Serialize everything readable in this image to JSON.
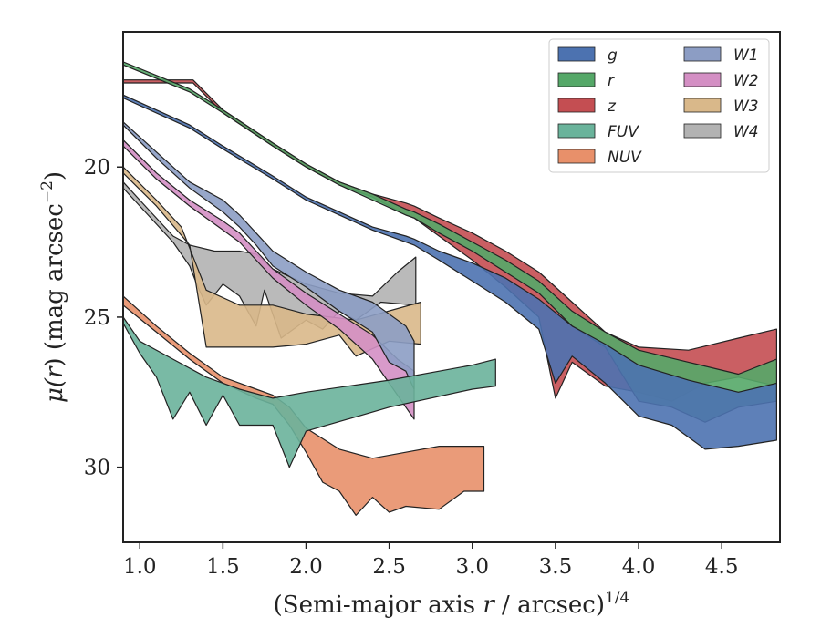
{
  "chart_data": {
    "type": "area",
    "xlabel": "(Semi-major axis r / arcsec)1/4",
    "xlabel_parts": {
      "pre": "(Semi-major axis ",
      "var": "r",
      "post": " / arcsec)",
      "sup": "1/4"
    },
    "ylabel": "μ(r) (mag arcsec−2)",
    "ylabel_parts": {
      "pre": "μ(",
      "var": "r",
      "mid": ") (mag arcsec",
      "sup": "−2",
      "post": ")"
    },
    "xlim": [
      0.9,
      4.85
    ],
    "ylim": [
      32.5,
      15.5
    ],
    "y_inverted": true,
    "x_ticks": [
      1.0,
      1.5,
      2.0,
      2.5,
      3.0,
      3.5,
      4.0,
      4.5
    ],
    "x_tick_labels": [
      "1.0",
      "1.5",
      "2.0",
      "2.5",
      "3.0",
      "3.5",
      "4.0",
      "4.5"
    ],
    "y_ticks": [
      20,
      25,
      30
    ],
    "y_tick_labels": [
      "20",
      "25",
      "30"
    ],
    "grid": false,
    "legend": {
      "placement": "top-right",
      "columns": 2
    },
    "series": [
      {
        "name": "g",
        "color": "#4c72b0",
        "flat_to": null,
        "upper": [
          [
            0.9,
            17.6
          ],
          [
            1.3,
            18.6
          ],
          [
            1.5,
            19.3
          ],
          [
            1.8,
            20.3
          ],
          [
            2.0,
            21.0
          ],
          [
            2.2,
            21.5
          ],
          [
            2.4,
            22.0
          ],
          [
            2.6,
            22.3
          ],
          [
            2.65,
            22.4
          ],
          [
            2.8,
            22.8
          ],
          [
            3.0,
            23.2
          ],
          [
            3.2,
            23.7
          ],
          [
            3.4,
            24.4
          ],
          [
            3.6,
            25.3
          ],
          [
            3.8,
            25.9
          ],
          [
            4.0,
            26.6
          ],
          [
            4.3,
            27.1
          ],
          [
            4.6,
            27.5
          ],
          [
            4.83,
            27.2
          ]
        ],
        "lower": [
          [
            0.9,
            17.7
          ],
          [
            1.3,
            18.7
          ],
          [
            1.5,
            19.4
          ],
          [
            1.8,
            20.4
          ],
          [
            2.0,
            21.1
          ],
          [
            2.2,
            21.6
          ],
          [
            2.4,
            22.1
          ],
          [
            2.6,
            22.5
          ],
          [
            2.65,
            22.6
          ],
          [
            2.8,
            23.1
          ],
          [
            3.0,
            23.8
          ],
          [
            3.2,
            24.5
          ],
          [
            3.4,
            25.4
          ],
          [
            3.5,
            27.2
          ],
          [
            3.6,
            26.3
          ],
          [
            3.8,
            27.2
          ],
          [
            4.0,
            28.3
          ],
          [
            4.2,
            28.6
          ],
          [
            4.4,
            29.4
          ],
          [
            4.6,
            29.3
          ],
          [
            4.83,
            29.1
          ]
        ]
      },
      {
        "name": "r",
        "color": "#55a868",
        "flat_to": null,
        "upper": [
          [
            0.9,
            16.5
          ],
          [
            1.3,
            17.4
          ],
          [
            1.5,
            18.1
          ],
          [
            1.8,
            19.2
          ],
          [
            2.0,
            19.9
          ],
          [
            2.2,
            20.5
          ],
          [
            2.4,
            20.9
          ],
          [
            2.6,
            21.4
          ],
          [
            2.65,
            21.5
          ],
          [
            2.8,
            21.9
          ],
          [
            3.0,
            22.5
          ],
          [
            3.2,
            23.1
          ],
          [
            3.4,
            23.8
          ],
          [
            3.6,
            24.8
          ],
          [
            3.8,
            25.5
          ],
          [
            4.0,
            26.1
          ],
          [
            4.3,
            26.5
          ],
          [
            4.6,
            26.9
          ],
          [
            4.83,
            26.4
          ]
        ],
        "lower": [
          [
            0.9,
            16.6
          ],
          [
            1.3,
            17.5
          ],
          [
            1.5,
            18.2
          ],
          [
            1.8,
            19.3
          ],
          [
            2.0,
            20.0
          ],
          [
            2.2,
            20.6
          ],
          [
            2.4,
            21.1
          ],
          [
            2.6,
            21.6
          ],
          [
            2.65,
            21.7
          ],
          [
            2.8,
            22.2
          ],
          [
            3.0,
            22.8
          ],
          [
            3.2,
            23.5
          ],
          [
            3.4,
            24.2
          ],
          [
            3.6,
            25.3
          ],
          [
            3.8,
            26.0
          ],
          [
            4.0,
            27.8
          ],
          [
            4.2,
            28.0
          ],
          [
            4.4,
            28.5
          ],
          [
            4.6,
            28.0
          ],
          [
            4.83,
            27.8
          ]
        ]
      },
      {
        "name": "z",
        "color": "#c44e52",
        "flat_to": [
          1.32,
          17.1
        ],
        "upper": [
          [
            0.9,
            17.1
          ],
          [
            1.32,
            17.1
          ],
          [
            1.5,
            18.1
          ],
          [
            1.8,
            19.2
          ],
          [
            2.0,
            19.9
          ],
          [
            2.2,
            20.5
          ],
          [
            2.4,
            20.9
          ],
          [
            2.6,
            21.2
          ],
          [
            2.65,
            21.3
          ],
          [
            2.8,
            21.7
          ],
          [
            3.0,
            22.2
          ],
          [
            3.2,
            22.8
          ],
          [
            3.4,
            23.5
          ],
          [
            3.6,
            24.5
          ],
          [
            3.8,
            25.5
          ],
          [
            4.0,
            26.0
          ],
          [
            4.3,
            26.1
          ],
          [
            4.6,
            25.7
          ],
          [
            4.83,
            25.4
          ]
        ],
        "lower": [
          [
            0.9,
            17.2
          ],
          [
            1.32,
            17.2
          ],
          [
            1.5,
            18.2
          ],
          [
            1.8,
            19.3
          ],
          [
            2.0,
            20.0
          ],
          [
            2.2,
            20.6
          ],
          [
            2.4,
            21.0
          ],
          [
            2.6,
            21.6
          ],
          [
            2.65,
            21.7
          ],
          [
            2.8,
            22.3
          ],
          [
            3.0,
            23.1
          ],
          [
            3.2,
            24.0
          ],
          [
            3.4,
            25.0
          ],
          [
            3.5,
            27.7
          ],
          [
            3.6,
            26.5
          ],
          [
            3.8,
            27.3
          ],
          [
            4.0,
            27.5
          ],
          [
            4.2,
            27.8
          ],
          [
            4.4,
            27.2
          ],
          [
            4.6,
            27.0
          ],
          [
            4.83,
            27.3
          ]
        ]
      },
      {
        "name": "FUV",
        "color": "#6ab39b",
        "flat_to": null,
        "upper": [
          [
            0.9,
            25.0
          ],
          [
            1.0,
            25.8
          ],
          [
            1.2,
            26.4
          ],
          [
            1.4,
            27.0
          ],
          [
            1.6,
            27.4
          ],
          [
            1.8,
            27.7
          ],
          [
            2.0,
            27.5
          ],
          [
            2.5,
            27.1
          ],
          [
            3.0,
            26.6
          ],
          [
            3.14,
            26.4
          ]
        ],
        "lower": [
          [
            0.9,
            25.2
          ],
          [
            1.0,
            26.2
          ],
          [
            1.1,
            27.0
          ],
          [
            1.2,
            28.4
          ],
          [
            1.3,
            27.5
          ],
          [
            1.4,
            28.6
          ],
          [
            1.5,
            27.6
          ],
          [
            1.6,
            28.6
          ],
          [
            1.7,
            28.6
          ],
          [
            1.8,
            28.6
          ],
          [
            1.9,
            30.0
          ],
          [
            2.0,
            28.8
          ],
          [
            2.5,
            28.0
          ],
          [
            3.0,
            27.4
          ],
          [
            3.14,
            27.3
          ]
        ]
      },
      {
        "name": "NUV",
        "color": "#e8906a",
        "flat_to": null,
        "upper": [
          [
            0.9,
            24.3
          ],
          [
            1.1,
            25.3
          ],
          [
            1.3,
            26.2
          ],
          [
            1.5,
            27.0
          ],
          [
            1.7,
            27.4
          ],
          [
            1.8,
            27.6
          ],
          [
            1.9,
            28.0
          ],
          [
            2.0,
            28.7
          ],
          [
            2.2,
            29.4
          ],
          [
            2.4,
            29.7
          ],
          [
            2.6,
            29.5
          ],
          [
            2.8,
            29.3
          ],
          [
            3.07,
            29.3
          ]
        ],
        "lower": [
          [
            0.9,
            24.6
          ],
          [
            1.1,
            25.5
          ],
          [
            1.3,
            26.4
          ],
          [
            1.5,
            27.2
          ],
          [
            1.7,
            27.7
          ],
          [
            1.8,
            27.9
          ],
          [
            1.9,
            28.6
          ],
          [
            2.0,
            29.5
          ],
          [
            2.1,
            30.5
          ],
          [
            2.2,
            30.8
          ],
          [
            2.3,
            31.6
          ],
          [
            2.4,
            31.0
          ],
          [
            2.5,
            31.5
          ],
          [
            2.6,
            31.3
          ],
          [
            2.8,
            31.4
          ],
          [
            2.95,
            30.8
          ],
          [
            3.07,
            30.8
          ]
        ]
      },
      {
        "name": "W1",
        "color": "#8c9dc4",
        "flat_to": null,
        "upper": [
          [
            0.9,
            18.5
          ],
          [
            1.1,
            19.5
          ],
          [
            1.3,
            20.5
          ],
          [
            1.5,
            21.1
          ],
          [
            1.6,
            21.6
          ],
          [
            1.7,
            22.2
          ],
          [
            1.8,
            22.8
          ],
          [
            2.0,
            23.5
          ],
          [
            2.2,
            24.1
          ],
          [
            2.4,
            24.5
          ],
          [
            2.6,
            25.3
          ],
          [
            2.65,
            25.8
          ]
        ],
        "lower": [
          [
            0.9,
            18.6
          ],
          [
            1.1,
            19.7
          ],
          [
            1.3,
            20.7
          ],
          [
            1.5,
            21.5
          ],
          [
            1.6,
            22.0
          ],
          [
            1.7,
            22.6
          ],
          [
            1.8,
            23.3
          ],
          [
            2.0,
            24.0
          ],
          [
            2.2,
            24.8
          ],
          [
            2.4,
            25.5
          ],
          [
            2.5,
            26.5
          ],
          [
            2.6,
            26.8
          ],
          [
            2.65,
            27.4
          ]
        ]
      },
      {
        "name": "W2",
        "color": "#d48fc4",
        "flat_to": null,
        "upper": [
          [
            0.9,
            19.1
          ],
          [
            1.1,
            20.2
          ],
          [
            1.3,
            21.1
          ],
          [
            1.5,
            21.8
          ],
          [
            1.6,
            22.2
          ],
          [
            1.7,
            22.8
          ],
          [
            1.8,
            23.4
          ],
          [
            2.0,
            24.2
          ],
          [
            2.2,
            24.9
          ],
          [
            2.4,
            25.6
          ],
          [
            2.55,
            26.4
          ],
          [
            2.65,
            26.8
          ]
        ],
        "lower": [
          [
            0.9,
            19.3
          ],
          [
            1.1,
            20.4
          ],
          [
            1.3,
            21.3
          ],
          [
            1.5,
            22.1
          ],
          [
            1.6,
            22.5
          ],
          [
            1.7,
            23.1
          ],
          [
            1.8,
            23.7
          ],
          [
            2.0,
            24.6
          ],
          [
            2.2,
            25.4
          ],
          [
            2.4,
            26.4
          ],
          [
            2.5,
            27.2
          ],
          [
            2.6,
            28.0
          ],
          [
            2.65,
            28.4
          ]
        ]
      },
      {
        "name": "W3",
        "color": "#d9b88a",
        "flat_to": null,
        "upper": [
          [
            0.9,
            20.0
          ],
          [
            1.1,
            21.1
          ],
          [
            1.25,
            22.0
          ],
          [
            1.4,
            24.1
          ],
          [
            1.6,
            24.6
          ],
          [
            1.8,
            24.6
          ],
          [
            2.0,
            24.9
          ],
          [
            2.3,
            25.1
          ],
          [
            2.69,
            24.5
          ]
        ],
        "lower": [
          [
            0.9,
            20.2
          ],
          [
            1.1,
            21.3
          ],
          [
            1.3,
            22.6
          ],
          [
            1.4,
            26.0
          ],
          [
            1.6,
            26.0
          ],
          [
            1.8,
            26.0
          ],
          [
            2.0,
            25.9
          ],
          [
            2.2,
            25.6
          ],
          [
            2.3,
            26.3
          ],
          [
            2.5,
            25.8
          ],
          [
            2.69,
            25.9
          ]
        ]
      },
      {
        "name": "W4",
        "color": "#b2b2b2",
        "flat_to": null,
        "upper": [
          [
            0.9,
            20.5
          ],
          [
            1.05,
            21.4
          ],
          [
            1.2,
            22.3
          ],
          [
            1.3,
            22.6
          ],
          [
            1.45,
            22.8
          ],
          [
            1.6,
            22.8
          ],
          [
            1.7,
            22.9
          ],
          [
            1.8,
            23.4
          ],
          [
            2.0,
            23.9
          ],
          [
            2.2,
            24.2
          ],
          [
            2.4,
            24.3
          ],
          [
            2.55,
            23.5
          ],
          [
            2.66,
            23.0
          ]
        ],
        "lower": [
          [
            0.9,
            20.7
          ],
          [
            1.05,
            21.6
          ],
          [
            1.2,
            22.5
          ],
          [
            1.3,
            23.3
          ],
          [
            1.35,
            24.0
          ],
          [
            1.4,
            24.6
          ],
          [
            1.5,
            23.9
          ],
          [
            1.6,
            24.3
          ],
          [
            1.7,
            25.3
          ],
          [
            1.75,
            24.1
          ],
          [
            1.85,
            25.7
          ],
          [
            2.0,
            25.1
          ],
          [
            2.1,
            25.4
          ],
          [
            2.2,
            24.8
          ],
          [
            2.3,
            25.1
          ],
          [
            2.45,
            24.5
          ],
          [
            2.66,
            24.6
          ]
        ]
      }
    ]
  }
}
